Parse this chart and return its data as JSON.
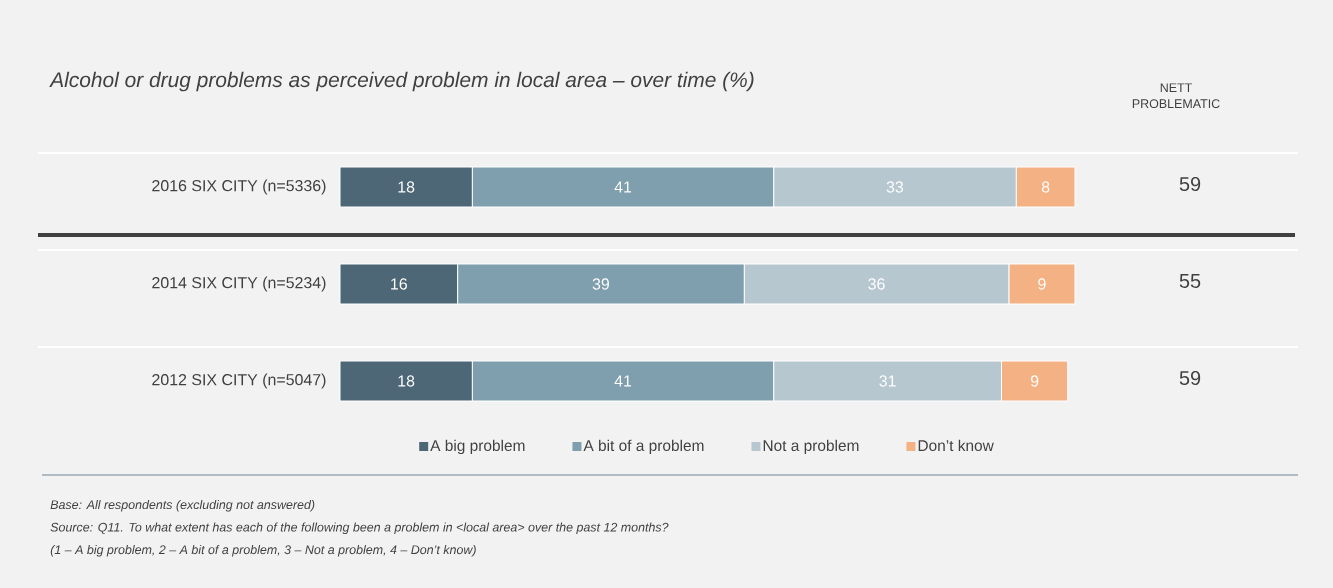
{
  "chart_data": {
    "type": "bar",
    "orientation": "horizontal",
    "stacked": true,
    "data_labels": true,
    "legend": "bottom",
    "tick_labels": "y",
    "title": "Alcohol or drug problems as perceived problem in local area – over time (%)",
    "categories": [
      "2016 SIX CITY (n=5336)",
      "2014 SIX CITY (n=5234)",
      "2012 SIX CITY (n=5047)"
    ],
    "series": [
      {
        "name": "A big problem",
        "color": "#4e6777",
        "values": [
          18,
          16,
          18
        ]
      },
      {
        "name": "A bit of a problem",
        "color": "#7f9fae",
        "values": [
          41,
          39,
          41
        ]
      },
      {
        "name": "Not a problem",
        "color": "#b7c7cf",
        "values": [
          33,
          36,
          31
        ]
      },
      {
        "name": "Don’t know",
        "color": "#f4b183",
        "values": [
          8,
          9,
          9
        ]
      }
    ],
    "annotations": [
      "NETT PROBLEMATIC",
      "59",
      "55",
      "59",
      "Base: All respondents (excluding not answered)",
      "Source: Q11. To what extent has each of the following been a problem in <local area> over the past 12 months?",
      "(1 – A big problem, 2 – A bit of a problem, 3 – Not a problem, 4 – Don’t know)"
    ]
  }
}
